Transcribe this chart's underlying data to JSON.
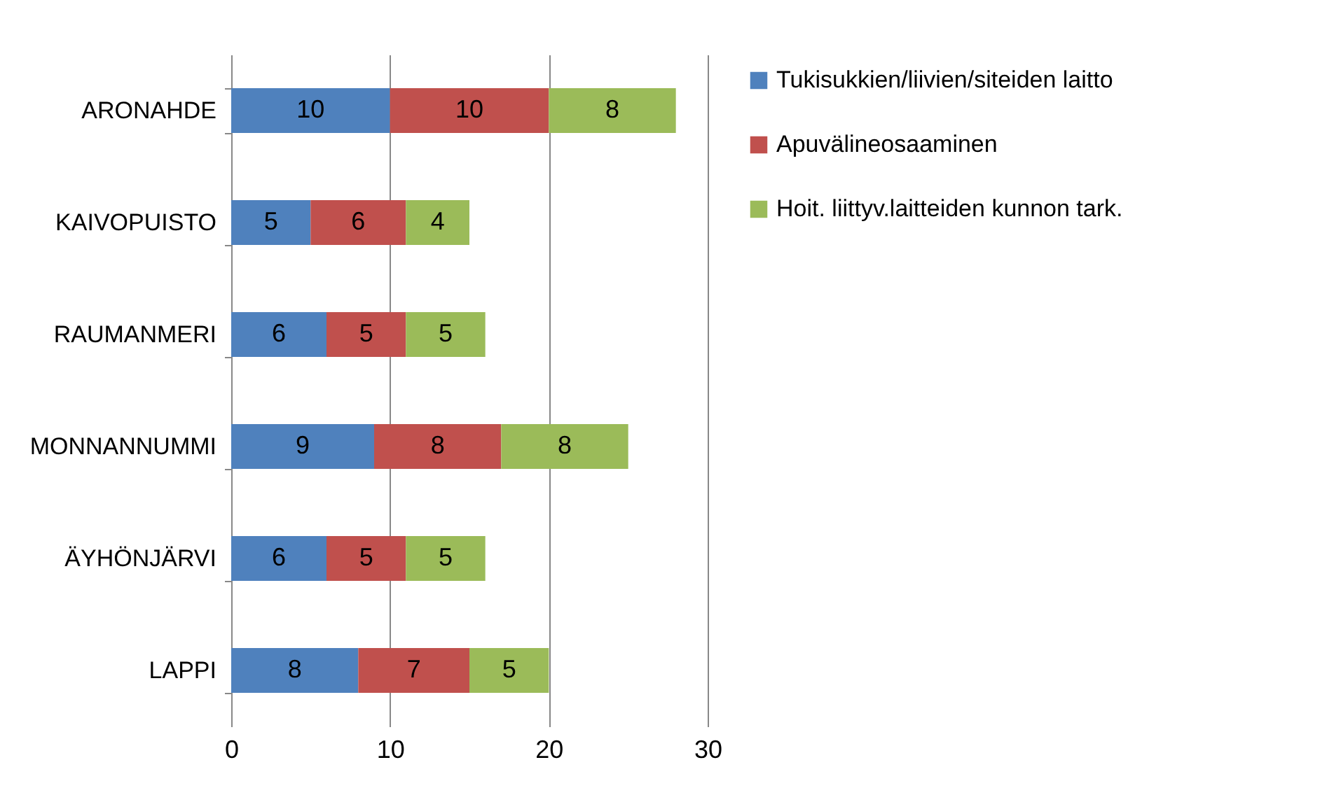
{
  "chart_data": {
    "type": "bar",
    "orientation": "horizontal",
    "stacked": true,
    "categories": [
      "ARONAHDE",
      "KAIVOPUISTO",
      "RAUMANMERI",
      "MONNANNUMMI",
      "ÄYHÖNJÄRVI",
      "LAPPI"
    ],
    "series": [
      {
        "name": "Tukisukkien/liivien/siteiden laitto",
        "color": "#4f81bd",
        "values": [
          10,
          5,
          6,
          9,
          6,
          8
        ]
      },
      {
        "name": "Apuvälineosaaminen",
        "color": "#c0504d",
        "values": [
          10,
          6,
          5,
          8,
          5,
          7
        ]
      },
      {
        "name": "Hoit. liittyv.laitteiden kunnon tark.",
        "color": "#9bbb59",
        "values": [
          8,
          4,
          5,
          8,
          5,
          5
        ]
      }
    ],
    "xlim": [
      0,
      30
    ],
    "xticks": [
      0,
      10,
      20,
      30
    ],
    "grid": "x",
    "legend": "right",
    "data_labels": true
  }
}
